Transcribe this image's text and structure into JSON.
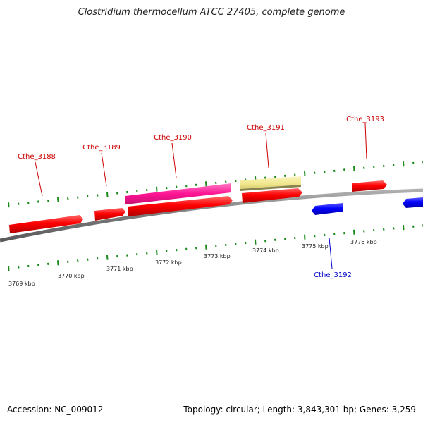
{
  "title": "Clostridium thermocellum ATCC 27405, complete genome",
  "footer": {
    "accession": "Accession: NC_009012",
    "summary": "Topology: circular; Length: 3,843,301 bp; Genes: 3,259"
  },
  "scale_labels": [
    "3769 kbp",
    "3770 kbp",
    "3771 kbp",
    "3772 kbp",
    "3773 kbp",
    "3774 kbp",
    "3775 kbp",
    "3776 kbp"
  ],
  "gene_labels": [
    {
      "name": "Cthe_3188",
      "strand": "forward"
    },
    {
      "name": "Cthe_3189",
      "strand": "forward"
    },
    {
      "name": "Cthe_3190",
      "strand": "forward"
    },
    {
      "name": "Cthe_3191",
      "strand": "forward"
    },
    {
      "name": "Cthe_3193",
      "strand": "forward"
    },
    {
      "name": "Cthe_3192",
      "strand": "reverse"
    }
  ],
  "colors": {
    "forward_gene": "#ff0000",
    "reverse_gene": "#0000ff",
    "forward_label": "#cc0000",
    "reverse_label": "#0000cc",
    "highlight_magenta": "#ff1493",
    "highlight_pale": "#f0e68c",
    "tick": "#1a8a1a",
    "backbone": "#808080"
  }
}
